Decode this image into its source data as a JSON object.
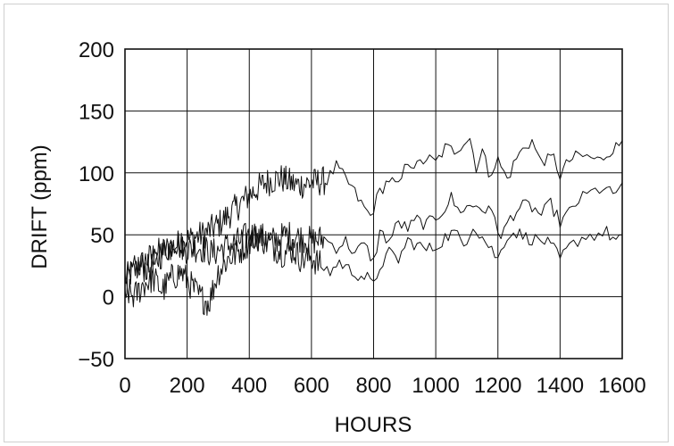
{
  "chart_data": {
    "type": "line",
    "title": "",
    "xlabel": "HOURS",
    "ylabel": "DRIFT (ppm)",
    "xlim": [
      0,
      1600
    ],
    "ylim": [
      -50,
      200
    ],
    "grid": true,
    "x_ticks": [
      0,
      200,
      400,
      600,
      800,
      1000,
      1200,
      1400,
      1600
    ],
    "x_tick_labels": [
      "0",
      "200",
      "400",
      "600",
      "800",
      "1000",
      "1200",
      "1400",
      "1600"
    ],
    "y_ticks": [
      -50,
      0,
      50,
      100,
      150,
      200
    ],
    "y_tick_labels": [
      "−50",
      "0",
      "50",
      "100",
      "150",
      "200"
    ],
    "series": [
      {
        "noise": 12,
        "points": [
          [
            0,
            15
          ],
          [
            30,
            20
          ],
          [
            60,
            28
          ],
          [
            100,
            35
          ],
          [
            150,
            40
          ],
          [
            200,
            46
          ],
          [
            250,
            50
          ],
          [
            300,
            58
          ],
          [
            350,
            70
          ],
          [
            400,
            82
          ],
          [
            450,
            92
          ],
          [
            500,
            96
          ],
          [
            550,
            90
          ],
          [
            600,
            92
          ],
          [
            650,
            94
          ],
          [
            680,
            105
          ],
          [
            700,
            98
          ],
          [
            730,
            88
          ],
          [
            760,
            75
          ],
          [
            790,
            65
          ],
          [
            820,
            85
          ],
          [
            850,
            95
          ],
          [
            880,
            88
          ],
          [
            910,
            110
          ],
          [
            940,
            105
          ],
          [
            970,
            112
          ],
          [
            1000,
            108
          ],
          [
            1030,
            120
          ],
          [
            1060,
            118
          ],
          [
            1090,
            125
          ],
          [
            1110,
            128
          ],
          [
            1130,
            105
          ],
          [
            1150,
            118
          ],
          [
            1170,
            100
          ],
          [
            1200,
            110
          ],
          [
            1230,
            95
          ],
          [
            1260,
            112
          ],
          [
            1290,
            122
          ],
          [
            1310,
            126
          ],
          [
            1330,
            112
          ],
          [
            1360,
            110
          ],
          [
            1380,
            112
          ],
          [
            1400,
            98
          ],
          [
            1430,
            110
          ],
          [
            1460,
            114
          ],
          [
            1500,
            112
          ],
          [
            1530,
            110
          ],
          [
            1560,
            118
          ],
          [
            1590,
            122
          ],
          [
            1600,
            126
          ]
        ]
      },
      {
        "noise": 12,
        "points": [
          [
            0,
            10
          ],
          [
            40,
            25
          ],
          [
            80,
            22
          ],
          [
            120,
            35
          ],
          [
            160,
            45
          ],
          [
            200,
            38
          ],
          [
            240,
            40
          ],
          [
            280,
            35
          ],
          [
            320,
            40
          ],
          [
            360,
            44
          ],
          [
            400,
            50
          ],
          [
            440,
            48
          ],
          [
            480,
            45
          ],
          [
            520,
            50
          ],
          [
            560,
            48
          ],
          [
            600,
            45
          ],
          [
            640,
            47
          ],
          [
            680,
            40
          ],
          [
            710,
            45
          ],
          [
            740,
            35
          ],
          [
            770,
            42
          ],
          [
            800,
            28
          ],
          [
            820,
            52
          ],
          [
            850,
            45
          ],
          [
            880,
            60
          ],
          [
            910,
            55
          ],
          [
            940,
            62
          ],
          [
            970,
            58
          ],
          [
            1000,
            64
          ],
          [
            1030,
            72
          ],
          [
            1050,
            80
          ],
          [
            1070,
            70
          ],
          [
            1100,
            72
          ],
          [
            1130,
            74
          ],
          [
            1160,
            70
          ],
          [
            1190,
            66
          ],
          [
            1210,
            45
          ],
          [
            1230,
            60
          ],
          [
            1260,
            70
          ],
          [
            1290,
            74
          ],
          [
            1310,
            72
          ],
          [
            1340,
            66
          ],
          [
            1370,
            75
          ],
          [
            1400,
            60
          ],
          [
            1430,
            68
          ],
          [
            1460,
            78
          ],
          [
            1500,
            84
          ],
          [
            1540,
            88
          ],
          [
            1570,
            82
          ],
          [
            1600,
            92
          ]
        ]
      },
      {
        "noise": 12,
        "points": [
          [
            0,
            5
          ],
          [
            30,
            0
          ],
          [
            60,
            10
          ],
          [
            90,
            15
          ],
          [
            120,
            5
          ],
          [
            150,
            15
          ],
          [
            180,
            20
          ],
          [
            210,
            10
          ],
          [
            240,
            0
          ],
          [
            270,
            -5
          ],
          [
            300,
            20
          ],
          [
            330,
            30
          ],
          [
            360,
            35
          ],
          [
            390,
            42
          ],
          [
            420,
            50
          ],
          [
            450,
            45
          ],
          [
            480,
            40
          ],
          [
            510,
            35
          ],
          [
            540,
            38
          ],
          [
            570,
            30
          ],
          [
            600,
            32
          ],
          [
            630,
            25
          ],
          [
            660,
            20
          ],
          [
            690,
            28
          ],
          [
            720,
            22
          ],
          [
            750,
            18
          ],
          [
            780,
            15
          ],
          [
            800,
            8
          ],
          [
            820,
            25
          ],
          [
            850,
            35
          ],
          [
            880,
            30
          ],
          [
            910,
            45
          ],
          [
            940,
            42
          ],
          [
            970,
            38
          ],
          [
            1000,
            40
          ],
          [
            1030,
            48
          ],
          [
            1060,
            52
          ],
          [
            1090,
            42
          ],
          [
            1120,
            58
          ],
          [
            1150,
            48
          ],
          [
            1180,
            38
          ],
          [
            1200,
            30
          ],
          [
            1230,
            50
          ],
          [
            1260,
            52
          ],
          [
            1290,
            48
          ],
          [
            1320,
            46
          ],
          [
            1350,
            45
          ],
          [
            1380,
            38
          ],
          [
            1400,
            30
          ],
          [
            1430,
            40
          ],
          [
            1470,
            48
          ],
          [
            1510,
            50
          ],
          [
            1550,
            52
          ],
          [
            1580,
            45
          ],
          [
            1600,
            50
          ]
        ]
      }
    ]
  }
}
